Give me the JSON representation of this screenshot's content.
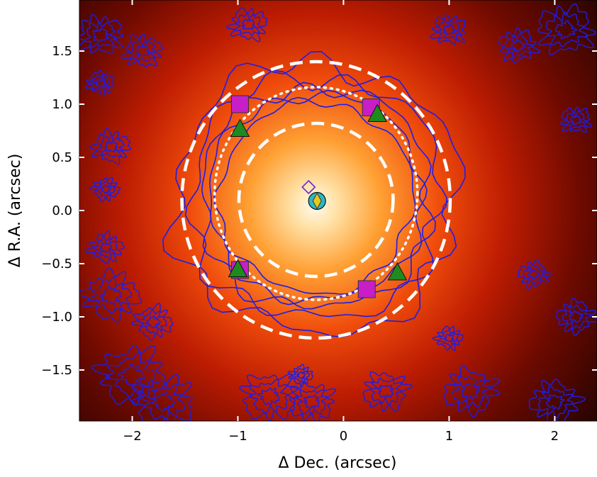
{
  "chart_data": {
    "type": "scatter",
    "xlabel": "Δ Dec. (arcsec)",
    "ylabel": "Δ R.A. (arcsec)",
    "xlim": [
      -2.5,
      2.4
    ],
    "ylim": [
      -1.98,
      1.98
    ],
    "x_ticks": [
      -2,
      -1,
      0,
      1,
      2
    ],
    "x_tick_labels": [
      "−2",
      "−1",
      "0",
      "1",
      "2"
    ],
    "y_ticks": [
      -1.5,
      -1.0,
      -0.5,
      0.0,
      0.5,
      1.0,
      1.5
    ],
    "y_tick_labels": [
      "−1.5",
      "−1.0",
      "−0.5",
      "0.0",
      "0.5",
      "1.0",
      "1.5"
    ],
    "image": {
      "colormap": "black-red-orange-white",
      "peak_center": [
        -0.25,
        0.05
      ],
      "peak_color": "#fff8ee",
      "mid_color": "#ff7a1a",
      "outer_color": "#c01600",
      "background_color": "#2a0500"
    },
    "contours": {
      "color": "#1e1ee6",
      "description_only": false
    },
    "ellipses": [
      {
        "name": "inner",
        "center": [
          -0.26,
          0.1
        ],
        "radii": [
          0.73,
          0.72
        ],
        "style": "dashed",
        "color": "#ffffff"
      },
      {
        "name": "middle",
        "center": [
          -0.26,
          0.16
        ],
        "radii": [
          0.96,
          1.0
        ],
        "style": "dotted",
        "color": "#ffffff"
      },
      {
        "name": "outer",
        "center": [
          -0.26,
          0.1
        ],
        "radii": [
          1.27,
          1.3
        ],
        "style": "dashed",
        "color": "#ffffff"
      }
    ],
    "markers": {
      "squares": {
        "color": "#c71ec7",
        "points": [
          [
            -0.98,
            1.0
          ],
          [
            0.26,
            0.97
          ],
          [
            0.22,
            -0.74
          ],
          [
            -0.98,
            -0.56
          ]
        ]
      },
      "triangles": {
        "color": "#1f8a1f",
        "points": [
          [
            -0.98,
            0.77
          ],
          [
            0.32,
            0.91
          ],
          [
            0.51,
            -0.58
          ],
          [
            -1.0,
            -0.55
          ]
        ]
      },
      "circle": {
        "color": "#2ab8c4",
        "point": [
          -0.25,
          0.09
        ]
      },
      "diamond": {
        "color": "#e8c81a",
        "point": [
          -0.25,
          0.09
        ]
      },
      "small_diamond": {
        "color": "#6a2ad8",
        "point": [
          -0.33,
          0.22
        ]
      }
    }
  }
}
